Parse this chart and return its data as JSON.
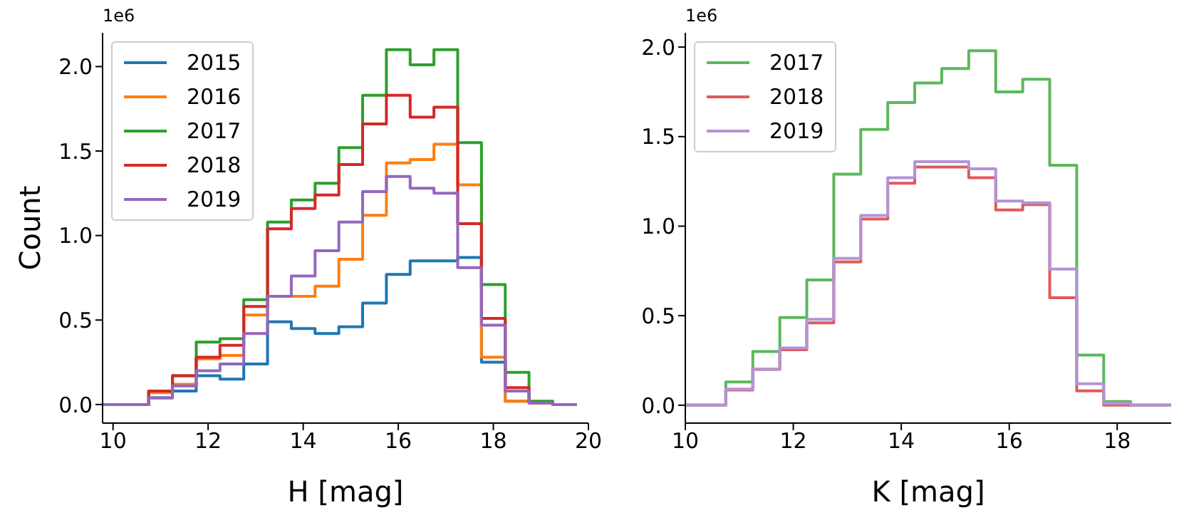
{
  "chart_data": [
    {
      "type": "histogram",
      "xlabel": "H [mag]",
      "ylabel": "Count",
      "annotations": [
        "1e6"
      ],
      "bins": [
        9.75,
        10.25,
        10.75,
        11.25,
        11.75,
        12.25,
        12.75,
        13.25,
        13.75,
        14.25,
        14.75,
        15.25,
        15.75,
        16.25,
        16.75,
        17.25,
        17.75,
        18.25,
        18.75,
        19.25,
        19.75
      ],
      "series": [
        {
          "name": "2015",
          "color": "#1f77b4",
          "values": [
            0,
            0,
            0.04,
            0.08,
            0.17,
            0.15,
            0.24,
            0.49,
            0.45,
            0.42,
            0.46,
            0.6,
            0.77,
            0.85,
            0.85,
            0.87,
            0.25,
            0.02,
            0.01,
            0
          ]
        },
        {
          "name": "2016",
          "color": "#ff7f0e",
          "values": [
            0,
            0,
            0.07,
            0.12,
            0.27,
            0.29,
            0.53,
            0.64,
            0.64,
            0.7,
            0.86,
            1.12,
            1.43,
            1.45,
            1.54,
            1.3,
            0.28,
            0.02,
            0.01,
            0
          ]
        },
        {
          "name": "2017",
          "color": "#2ca02c",
          "values": [
            0,
            0,
            0.08,
            0.17,
            0.37,
            0.39,
            0.62,
            1.08,
            1.21,
            1.31,
            1.52,
            1.83,
            2.1,
            2.01,
            2.1,
            1.55,
            0.71,
            0.19,
            0.02,
            0
          ]
        },
        {
          "name": "2018",
          "color": "#d62728",
          "values": [
            0,
            0,
            0.08,
            0.17,
            0.28,
            0.35,
            0.58,
            1.04,
            1.16,
            1.24,
            1.42,
            1.66,
            1.83,
            1.7,
            1.76,
            1.07,
            0.51,
            0.1,
            0.01,
            0
          ]
        },
        {
          "name": "2019",
          "color": "#9467bd",
          "values": [
            0,
            0,
            0.04,
            0.11,
            0.2,
            0.24,
            0.42,
            0.64,
            0.76,
            0.91,
            1.08,
            1.26,
            1.35,
            1.28,
            1.25,
            0.81,
            0.47,
            0.08,
            0.01,
            0
          ]
        }
      ],
      "xlim": [
        9.78,
        20
      ],
      "xticks": [
        10,
        12,
        14,
        16,
        18,
        20
      ],
      "ylim": [
        -0.11,
        2.2
      ],
      "yticks": [
        {
          "value": 0,
          "label": "0.0"
        },
        {
          "value": 0.5,
          "label": "0.5"
        },
        {
          "value": 1,
          "label": "1.0"
        },
        {
          "value": 1.5,
          "label": "1.5"
        },
        {
          "value": 2,
          "label": "2.0"
        }
      ],
      "grid": false,
      "legend": "top left"
    },
    {
      "type": "histogram",
      "xlabel": "K [mag]",
      "annotations": [
        "1e6"
      ],
      "bins": [
        9.75,
        10.25,
        10.75,
        11.25,
        11.75,
        12.25,
        12.75,
        13.25,
        13.75,
        14.25,
        14.75,
        15.25,
        15.75,
        16.25,
        16.75,
        17.25,
        17.75,
        18.25,
        18.75,
        19.25
      ],
      "series": [
        {
          "name": "2017",
          "color": "#5cb85c",
          "values": [
            0,
            0,
            0.13,
            0.3,
            0.49,
            0.7,
            1.29,
            1.54,
            1.69,
            1.8,
            1.88,
            1.98,
            1.75,
            1.82,
            1.34,
            0.28,
            0.02,
            0,
            0
          ]
        },
        {
          "name": "2018",
          "color": "#e05a5a",
          "values": [
            0,
            0,
            0.085,
            0.2,
            0.31,
            0.46,
            0.8,
            1.04,
            1.24,
            1.33,
            1.33,
            1.27,
            1.09,
            1.12,
            0.6,
            0.08,
            0,
            0,
            0
          ]
        },
        {
          "name": "2019",
          "color": "#b294d6",
          "values": [
            0,
            0,
            0.09,
            0.2,
            0.32,
            0.48,
            0.82,
            1.06,
            1.27,
            1.36,
            1.36,
            1.32,
            1.14,
            1.13,
            0.76,
            0.12,
            0.01,
            0,
            0
          ]
        }
      ],
      "xlim": [
        10,
        19
      ],
      "xticks": [
        10,
        12,
        14,
        16,
        18
      ],
      "ylim": [
        -0.1,
        2.08
      ],
      "yticks": [
        {
          "value": 0,
          "label": "0.0"
        },
        {
          "value": 0.5,
          "label": "0.5"
        },
        {
          "value": 1,
          "label": "1.0"
        },
        {
          "value": 1.5,
          "label": "1.5"
        },
        {
          "value": 2,
          "label": "2.0"
        }
      ],
      "grid": false,
      "legend": "top left"
    }
  ]
}
